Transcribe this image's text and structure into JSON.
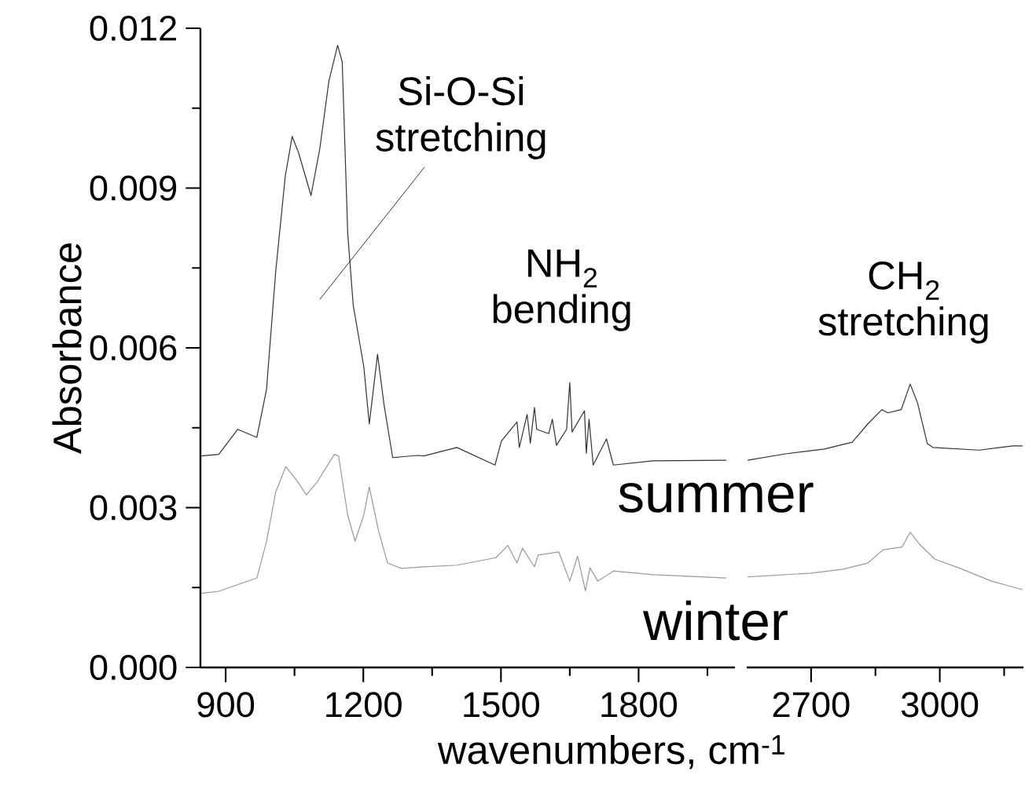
{
  "chart_data": [
    {
      "type": "line",
      "xlabel": "wavenumbers, cm$^{-1}$",
      "ylabel": "Absorbance",
      "xlim": [
        845,
        2010
      ],
      "xticks": [
        900,
        {
          "value": 1050,
          "label": null
        },
        1200,
        {
          "value": 1350,
          "label": null
        },
        1500,
        {
          "value": 1650,
          "label": null
        },
        1800,
        {
          "value": 1950,
          "label": null
        }
      ],
      "ylim": [
        0,
        0.012
      ],
      "yticks": [
        {
          "value": 0,
          "label": "0.000"
        },
        {
          "value": 0.0015,
          "label": null
        },
        {
          "value": 0.003,
          "label": "0.003"
        },
        {
          "value": 0.0045,
          "label": null
        },
        {
          "value": 0.006,
          "label": "0.006"
        },
        {
          "value": 0.0075,
          "label": null
        },
        {
          "value": 0.009,
          "label": "0.009"
        },
        {
          "value": 0.0105,
          "label": null
        },
        {
          "value": 0.012,
          "label": "0.012"
        }
      ],
      "annotations": [
        "Si-O-Si stretching",
        "NH$_{2}$ bending"
      ],
      "series": [
        {
          "name": "summer",
          "color": "#333333",
          "x": [
            847,
            885,
            926,
            968,
            989,
            1009,
            1030,
            1045,
            1059,
            1086,
            1105,
            1125,
            1144,
            1154,
            1166,
            1178,
            1201,
            1213,
            1231,
            1245,
            1264,
            1318,
            1332,
            1404,
            1487,
            1501,
            1535,
            1540,
            1557,
            1564,
            1573,
            1578,
            1604,
            1612,
            1621,
            1643,
            1650,
            1655,
            1682,
            1686,
            1692,
            1701,
            1730,
            1745,
            1831,
            1991
          ],
          "values": [
            0.00397,
            0.004,
            0.00447,
            0.00432,
            0.00522,
            0.00743,
            0.00923,
            0.00997,
            0.00966,
            0.00886,
            0.00973,
            0.01101,
            0.01168,
            0.01137,
            0.00815,
            0.0068,
            0.00565,
            0.00457,
            0.00588,
            0.00494,
            0.00394,
            0.00398,
            0.00397,
            0.00413,
            0.0038,
            0.00425,
            0.00461,
            0.00413,
            0.00475,
            0.00421,
            0.00488,
            0.00447,
            0.00439,
            0.00466,
            0.00417,
            0.00447,
            0.00535,
            0.00442,
            0.00482,
            0.00402,
            0.00466,
            0.0038,
            0.00429,
            0.0038,
            0.00388,
            0.00389
          ]
        },
        {
          "name": "winter",
          "color": "#999999",
          "x": [
            847,
            885,
            968,
            989,
            1009,
            1031,
            1055,
            1076,
            1100,
            1137,
            1146,
            1166,
            1182,
            1201,
            1213,
            1233,
            1253,
            1283,
            1332,
            1404,
            1489,
            1515,
            1535,
            1547,
            1573,
            1581,
            1626,
            1650,
            1667,
            1684,
            1694,
            1711,
            1745,
            1831,
            1991
          ],
          "values": [
            0.00139,
            0.00143,
            0.00168,
            0.00236,
            0.00329,
            0.00377,
            0.00351,
            0.00324,
            0.00349,
            0.004,
            0.00397,
            0.00286,
            0.00237,
            0.00286,
            0.00339,
            0.00257,
            0.00196,
            0.00186,
            0.00189,
            0.00192,
            0.00206,
            0.00229,
            0.00196,
            0.00224,
            0.00189,
            0.00211,
            0.00217,
            0.00162,
            0.00209,
            0.00144,
            0.00187,
            0.00162,
            0.00181,
            0.00174,
            0.00168
          ]
        }
      ]
    },
    {
      "type": "line",
      "xlim": [
        2550,
        3195
      ],
      "xticks": [
        2700,
        {
          "value": 2850,
          "label": null
        },
        3000,
        {
          "value": 3150,
          "label": null
        }
      ],
      "ylim": [
        0,
        0.012
      ],
      "tick_labels": "x",
      "annotations": [
        "CH$_{2}$ stretching"
      ],
      "series": [
        {
          "color": "#333333",
          "x": [
            2552,
            2640,
            2731,
            2796,
            2832,
            2865,
            2879,
            2910,
            2931,
            2948,
            2971,
            2984,
            3092,
            3170,
            3193
          ],
          "values": [
            0.00389,
            0.00401,
            0.0041,
            0.00423,
            0.00457,
            0.00484,
            0.00478,
            0.00484,
            0.00532,
            0.00497,
            0.0042,
            0.00413,
            0.00408,
            0.00416,
            0.00416
          ]
        },
        {
          "color": "#999999",
          "x": [
            2552,
            2700,
            2772,
            2832,
            2868,
            2912,
            2931,
            2953,
            2989,
            3044,
            3121,
            3193
          ],
          "values": [
            0.0017,
            0.00177,
            0.00184,
            0.00196,
            0.00221,
            0.00226,
            0.00254,
            0.00231,
            0.00203,
            0.00187,
            0.00162,
            0.00146
          ]
        }
      ]
    }
  ]
}
